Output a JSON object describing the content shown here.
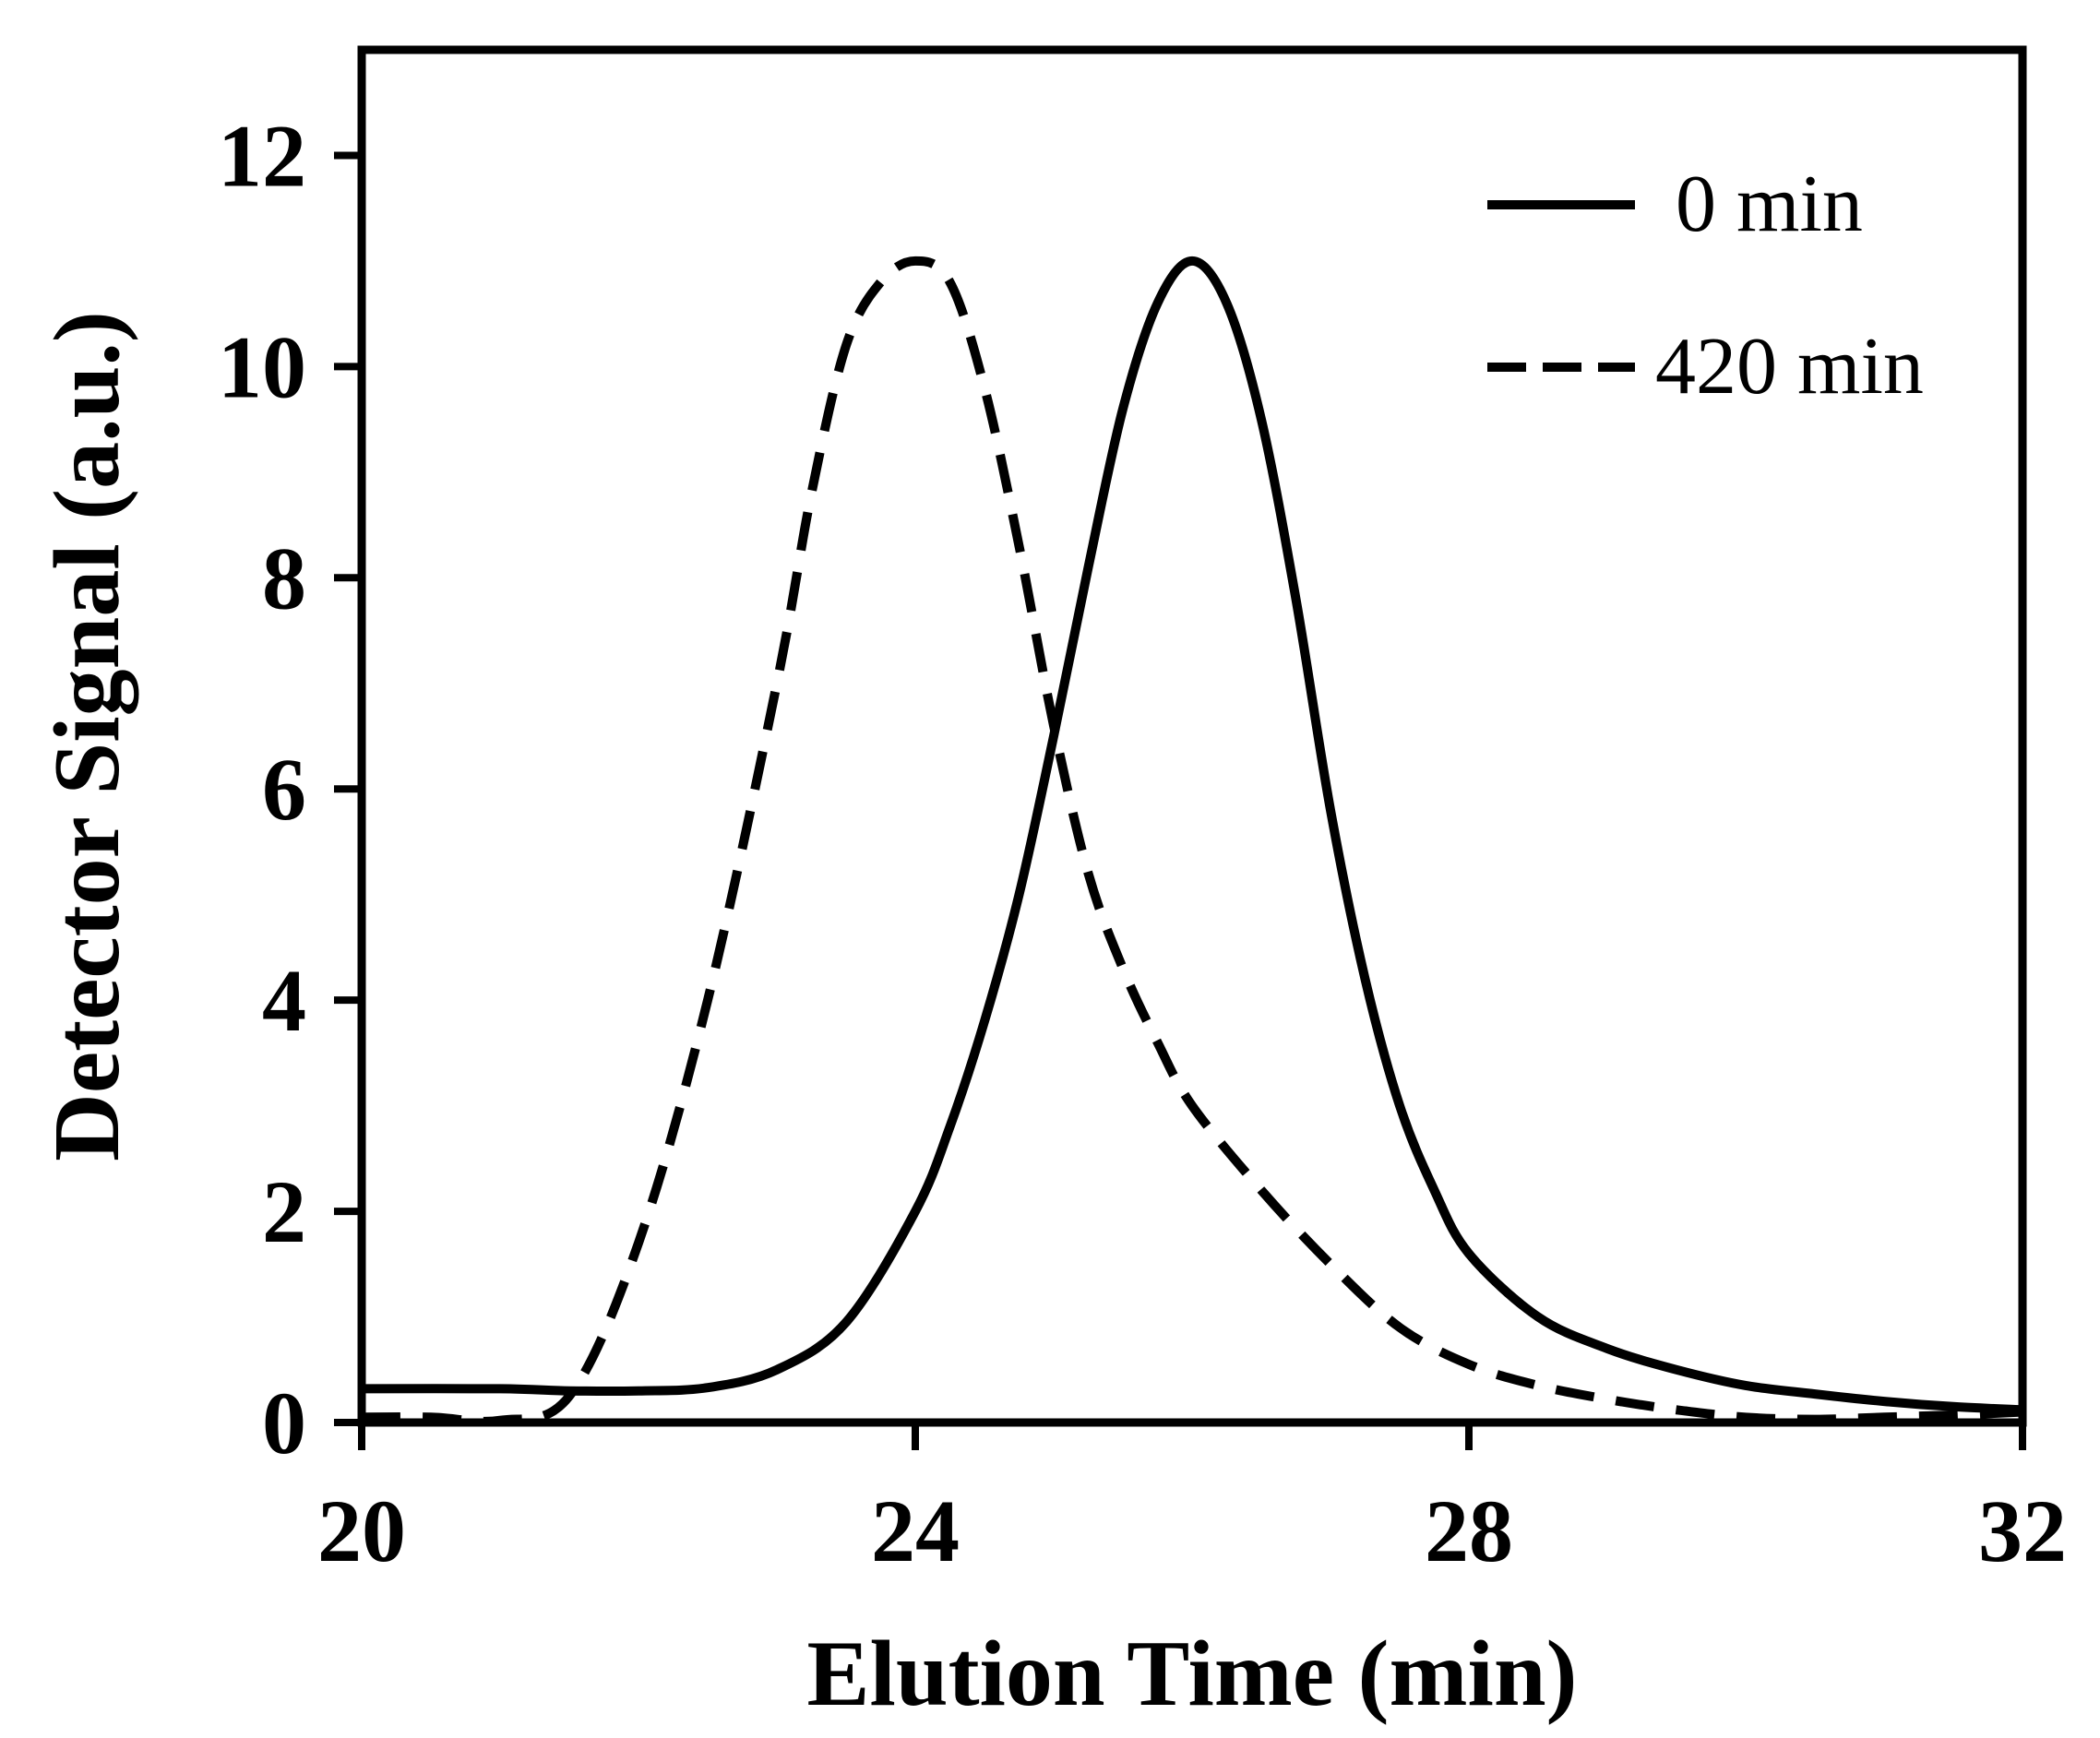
{
  "chart_data": {
    "type": "line",
    "xlabel": "Elution Time (min)",
    "ylabel": "Detector Signal (a.u.)",
    "xlim": [
      20,
      32
    ],
    "ylim": [
      0,
      13
    ],
    "xticks": [
      20,
      24,
      28,
      32
    ],
    "yticks": [
      0,
      2,
      4,
      6,
      8,
      10,
      12
    ],
    "grid": false,
    "legend_position": "top-right",
    "series": [
      {
        "name": "0 min",
        "style": "solid",
        "color": "#000000",
        "x": [
          20,
          21,
          21.5,
          22,
          22.5,
          23,
          23.5,
          24,
          24.25,
          24.5,
          24.75,
          25,
          25.25,
          25.5,
          25.75,
          26,
          26.25,
          26.5,
          26.75,
          27,
          27.25,
          27.5,
          27.75,
          28,
          28.5,
          29,
          29.5,
          30,
          30.5,
          31,
          31.5,
          32
        ],
        "y": [
          0.32,
          0.32,
          0.3,
          0.3,
          0.33,
          0.5,
          0.95,
          2.0,
          2.8,
          3.8,
          5.0,
          6.5,
          8.1,
          9.6,
          10.6,
          11.0,
          10.6,
          9.5,
          7.8,
          5.8,
          4.2,
          3.0,
          2.2,
          1.6,
          1.0,
          0.7,
          0.5,
          0.35,
          0.27,
          0.2,
          0.15,
          0.12
        ]
      },
      {
        "name": "420 min",
        "style": "dashed",
        "color": "#000000",
        "x": [
          20,
          20.5,
          21,
          21.5,
          22,
          22.5,
          23,
          23.25,
          23.5,
          23.75,
          24,
          24.25,
          24.5,
          24.75,
          25,
          25.25,
          25.5,
          25.75,
          26,
          26.5,
          27,
          27.5,
          28,
          28.5,
          29,
          29.5,
          30,
          30.5,
          31,
          31.5,
          32
        ],
        "y": [
          0.05,
          0.05,
          0.02,
          0.25,
          1.7,
          4.0,
          7.0,
          8.8,
          10.2,
          10.8,
          11.0,
          10.8,
          9.8,
          8.3,
          6.6,
          5.2,
          4.3,
          3.6,
          3.0,
          2.2,
          1.5,
          0.9,
          0.55,
          0.35,
          0.22,
          0.12,
          0.05,
          0.03,
          0.05,
          0.07,
          0.1
        ]
      }
    ]
  }
}
